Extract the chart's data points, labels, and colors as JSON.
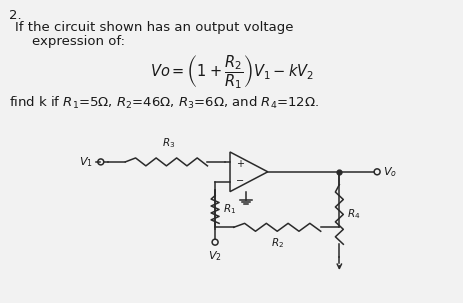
{
  "background_color": "#f2f2f2",
  "number": "2.",
  "line1": "If the circuit shown has an output voltage",
  "line2": "    expression of:",
  "line3": "find k if $R_1$=5$\\Omega$, $R_2$=46$\\Omega$, $R_3$=6$\\Omega$, and $R_4$=12$\\Omega$.",
  "text_color": "#1a1a1a",
  "font_size_main": 9.5,
  "font_size_formula": 11,
  "circuit_color": "#2a2a2a"
}
